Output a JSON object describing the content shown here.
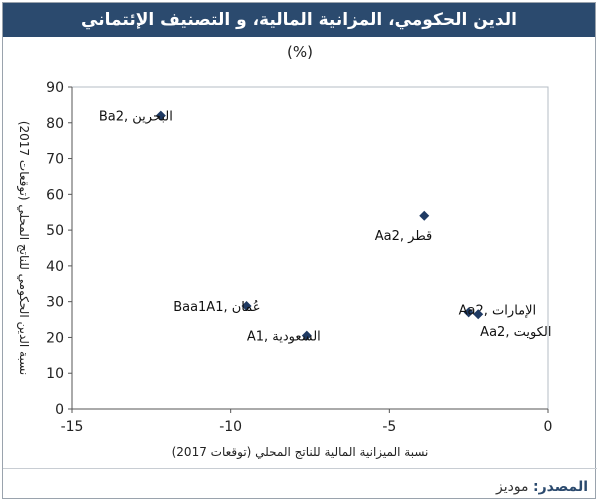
{
  "header": {
    "title": "الدين الحكومي، المزانية المالية، و التصنيف الإئتماني",
    "subtitle": "(%)"
  },
  "source": {
    "label": "المصدر:",
    "name": "موديز"
  },
  "colors": {
    "title_bg": "#2b4a6e",
    "marker": "#1f3a63",
    "axis": "#555555"
  },
  "chart_data": {
    "type": "scatter",
    "title": "الدين الحكومي، المزانية المالية، و التصنيف الإئتماني",
    "subtitle": "(%)",
    "xlabel": "نسبة الميزانية المالية للناتج المحلي (توقعات 2017)",
    "ylabel": "نسبة الدين الحكومي للناتج المحلي (توقعات 2017)",
    "xlim": [
      -15,
      0
    ],
    "ylim": [
      0,
      90
    ],
    "xticks": [
      -15,
      -10,
      -5,
      0
    ],
    "yticks": [
      0,
      10,
      20,
      30,
      40,
      50,
      60,
      70,
      80,
      90
    ],
    "grid": false,
    "points": [
      {
        "label": "البحرين",
        "rating": "Ba2",
        "x": -12.2,
        "y": 82
      },
      {
        "label": "قطر",
        "rating": "Aa2",
        "x": -3.9,
        "y": 54
      },
      {
        "label": "عُمان",
        "rating": "Baa1A1",
        "x": -9.5,
        "y": 28.8
      },
      {
        "label": "الإمارات",
        "rating": "Aa2",
        "x": -2.5,
        "y": 27
      },
      {
        "label": "الكويت",
        "rating": "Aa2",
        "x": -2.2,
        "y": 26.5
      },
      {
        "label": "السعودية",
        "rating": "A1",
        "x": -7.6,
        "y": 20.5
      }
    ]
  }
}
